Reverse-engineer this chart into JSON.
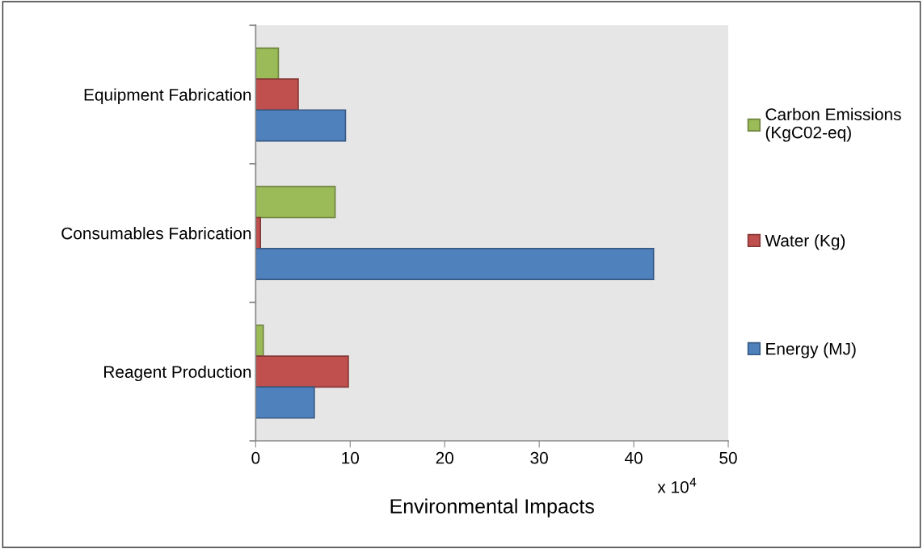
{
  "chart_data": {
    "type": "bar",
    "orientation": "horizontal",
    "xlabel": "Environmental Impacts",
    "categories": [
      "Equipment Fabrication",
      "Consumables Fabrication",
      "Reagent Production"
    ],
    "series": [
      {
        "name": "Carbon Emissions (KgC02-eq)",
        "color": "#9bbb59",
        "values": [
          2.4,
          8.4,
          0.8
        ]
      },
      {
        "name": "Water (Kg)",
        "color": "#c0504d",
        "values": [
          4.5,
          0.5,
          9.8
        ]
      },
      {
        "name": "Energy (MJ)",
        "color": "#4f81bd",
        "values": [
          9.5,
          42.1,
          6.2
        ]
      }
    ],
    "xlim": [
      0,
      50
    ],
    "xticks": [
      0,
      10,
      20,
      30,
      40,
      50
    ],
    "grid": false,
    "legend": "right",
    "annotations": [
      "x 10$^{4}$"
    ]
  }
}
